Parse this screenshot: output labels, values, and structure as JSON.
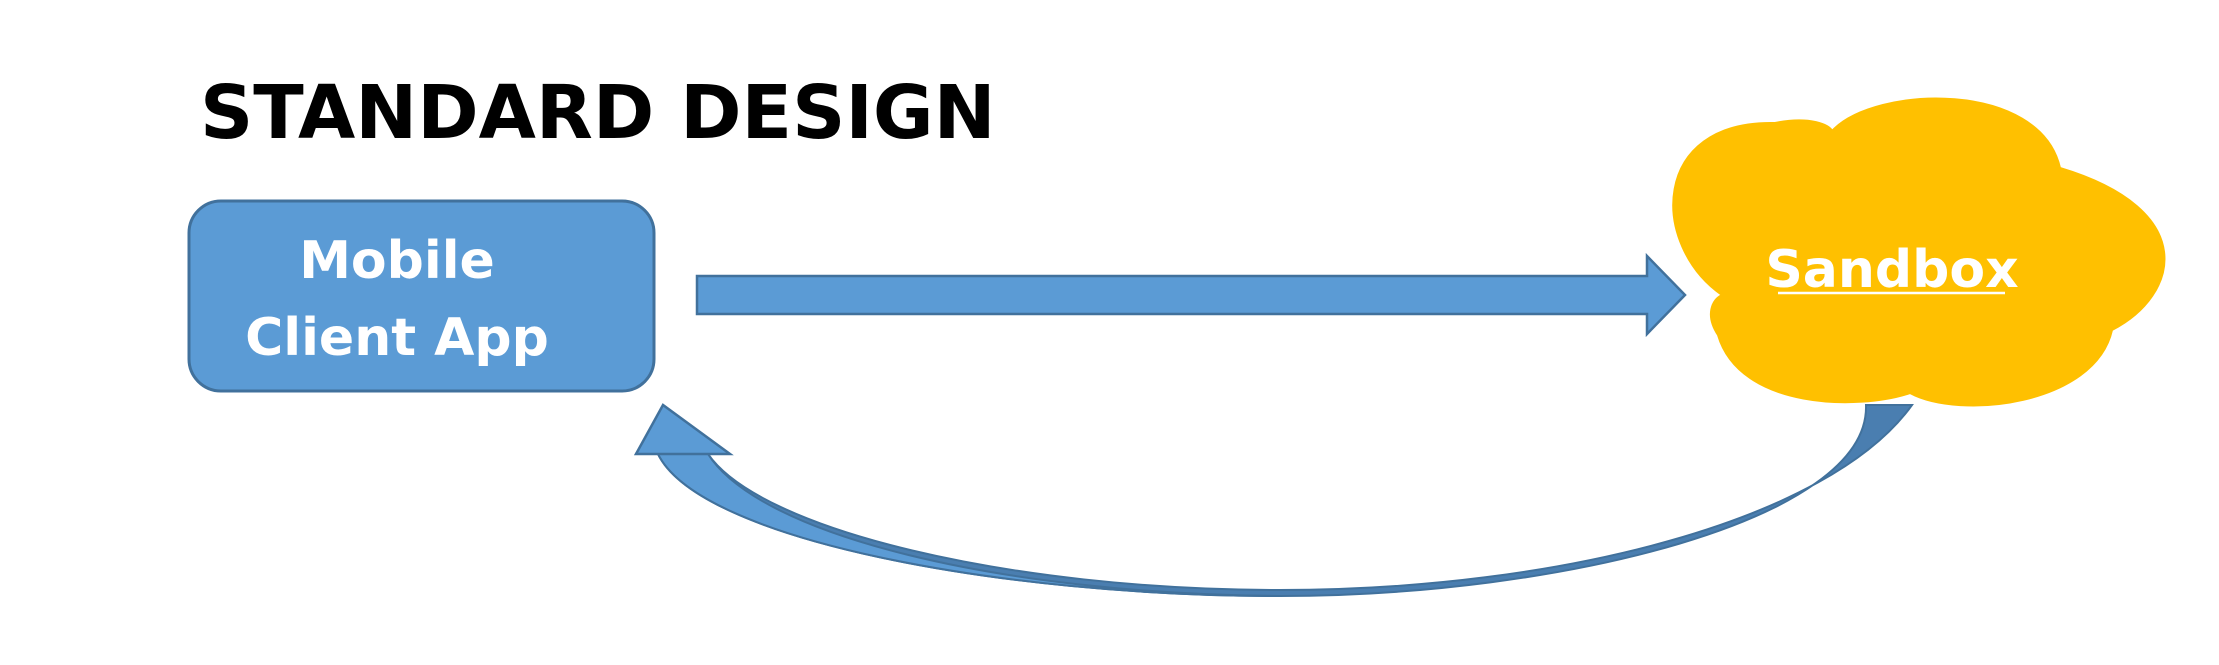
{
  "title": "STANDARD DESIGN",
  "nodes": {
    "mobile_client": {
      "line1": "Mobile",
      "line2": "Client App"
    },
    "sandbox": {
      "label": "Sandbox"
    }
  },
  "colors": {
    "box_fill": "#5b9bd5",
    "box_stroke": "#41719c",
    "arrow_fill": "#5b9bd5",
    "arrow_dark": "#4a7eb0",
    "cloud_fill": "#ffc000",
    "text_light": "#ffffff",
    "text_dark": "#000000"
  }
}
